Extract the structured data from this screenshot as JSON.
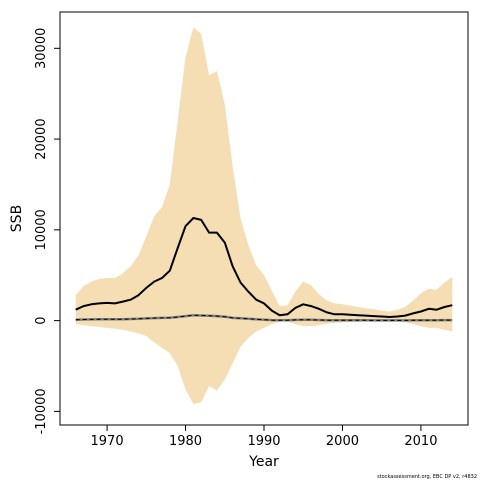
{
  "chart_data": {
    "type": "line",
    "title": "",
    "xlabel": "Year",
    "ylabel": "SSB",
    "xlim": [
      1964,
      2016
    ],
    "ylim": [
      -11500,
      34000
    ],
    "x_ticks": [
      1970,
      1980,
      1990,
      2000,
      2010
    ],
    "y_ticks": [
      -10000,
      0,
      10000,
      20000,
      30000
    ],
    "grid": false,
    "legend": "none",
    "colors": {
      "band": "#f5deb3",
      "main_line": "#000000",
      "secondary_line": "#808080",
      "dashed_line": "#000000"
    },
    "x": [
      1966,
      1967,
      1968,
      1969,
      1970,
      1971,
      1972,
      1973,
      1974,
      1975,
      1976,
      1977,
      1978,
      1979,
      1980,
      1981,
      1982,
      1983,
      1984,
      1985,
      1986,
      1987,
      1988,
      1989,
      1990,
      1991,
      1992,
      1993,
      1994,
      1995,
      1996,
      1997,
      1998,
      1999,
      2000,
      2001,
      2002,
      2003,
      2004,
      2005,
      2006,
      2007,
      2008,
      2009,
      2010,
      2011,
      2012,
      2013,
      2014
    ],
    "series": [
      {
        "values": [
          1200,
          1600,
          1800,
          1900,
          1950,
          1900,
          2100,
          2300,
          2800,
          3600,
          4300,
          4700,
          5500,
          8000,
          10400,
          11300,
          11100,
          9700,
          9700,
          8600,
          6000,
          4200,
          3200,
          2300,
          1900,
          1100,
          600,
          700,
          1400,
          1800,
          1600,
          1300,
          900,
          700,
          700,
          650,
          600,
          550,
          500,
          450,
          400,
          450,
          550,
          800,
          1000,
          1300,
          1200,
          1500,
          1700
        ]
      },
      {
        "values": [
          100,
          120,
          130,
          140,
          150,
          140,
          160,
          180,
          200,
          240,
          280,
          300,
          320,
          400,
          500,
          600,
          560,
          540,
          500,
          430,
          300,
          250,
          200,
          150,
          100,
          60,
          40,
          50,
          80,
          100,
          90,
          70,
          50,
          40,
          40,
          35,
          30,
          30,
          25,
          20,
          20,
          20,
          25,
          30,
          40,
          50,
          50,
          60,
          60
        ]
      }
    ],
    "band": {
      "upper": [
        2800,
        3800,
        4300,
        4600,
        4700,
        4700,
        5200,
        6000,
        7200,
        9300,
        11500,
        12500,
        15000,
        22000,
        29000,
        32300,
        31600,
        27000,
        27500,
        23800,
        17000,
        11300,
        8300,
        6100,
        5000,
        3300,
        1600,
        1700,
        3200,
        4300,
        3900,
        2900,
        2200,
        1900,
        1800,
        1650,
        1500,
        1350,
        1250,
        1100,
        1000,
        1200,
        1500,
        2200,
        3000,
        3500,
        3400,
        4200,
        4800
      ]
    },
    "lower_values_negative": {
      "lower": [
        -400,
        -500,
        -600,
        -700,
        -800,
        -900,
        -1000,
        -1200,
        -1400,
        -1700,
        -2400,
        -3000,
        -3600,
        -5000,
        -7600,
        -9200,
        -9000,
        -7200,
        -7700,
        -6500,
        -4700,
        -2900,
        -1900,
        -1200,
        -800,
        -400,
        -100,
        -100,
        -400,
        -600,
        -600,
        -500,
        -350,
        -250,
        -200,
        -150,
        -120,
        -100,
        -80,
        -60,
        -60,
        -100,
        -200,
        -400,
        -600,
        -800,
        -800,
        -1000,
        -1200
      ]
    },
    "footer_credit": "stockassessment.org, EBC DP v2, r4832"
  }
}
